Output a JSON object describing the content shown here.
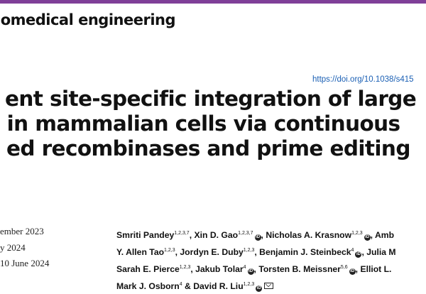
{
  "colors": {
    "accent": "#7f3f98",
    "link": "#1a5fb4"
  },
  "journal": "iomedical engineering",
  "doi": "https://doi.org/10.1038/s415",
  "title_lines": [
    "ent site-specific integration of large",
    "s in mammalian cells via continuous",
    "ed recombinases and prime editing"
  ],
  "dates": [
    "ember 2023",
    "y 2024",
    "10 June 2024"
  ],
  "icons": {
    "orcid": "orcid-icon",
    "email": "email-icon"
  },
  "authors": {
    "line1": [
      {
        "name": "Smriti Pandey",
        "sup": "1,2,3,7",
        "sep": ", "
      },
      {
        "name": "Xin D. Gao",
        "sup": "1,2,3,7",
        "orcid": "iD",
        "sep": ", "
      },
      {
        "name": "Nicholas A. Krasnow",
        "sup": "1,2,3",
        "orcid": "iD",
        "sep": ", "
      },
      {
        "name": "Amb",
        "sup": "",
        "sep": ""
      }
    ],
    "line2": [
      {
        "name": "Y. Allen Tao",
        "sup": "1,2,3",
        "sep": ", "
      },
      {
        "name": "Jordyn E. Duby",
        "sup": "1,2,3",
        "sep": ", "
      },
      {
        "name": "Benjamin J. Steinbeck",
        "sup": "4",
        "orcid": "iD",
        "sep": ", "
      },
      {
        "name": "Julia M",
        "sup": "",
        "sep": ""
      }
    ],
    "line3": [
      {
        "name": "Sarah E. Pierce",
        "sup": "1,2,3",
        "sep": ", "
      },
      {
        "name": "Jakub Tolar",
        "sup": "4",
        "orcid": "iD",
        "sep": ", "
      },
      {
        "name": "Torsten B. Meissner",
        "sup": "5,6",
        "orcid": "iD",
        "sep": ", "
      },
      {
        "name": "Elliot L.",
        "sup": "",
        "sep": ""
      }
    ],
    "line4": [
      {
        "name": "Mark J. Osborn",
        "sup": "4",
        "sep": " & "
      },
      {
        "name": "David R. Liu",
        "sup": "1,2,3",
        "orcid": "iD",
        "mail": true,
        "sep": ""
      }
    ]
  }
}
